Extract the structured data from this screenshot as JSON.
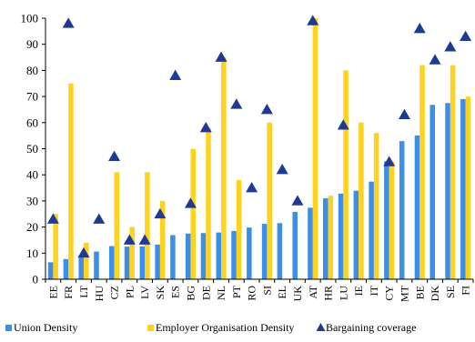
{
  "chart_data": {
    "type": "bar",
    "categories": [
      "EE",
      "FR",
      "LT",
      "HU",
      "CZ",
      "PL",
      "LV",
      "SK",
      "ES",
      "BG",
      "DE",
      "NL",
      "PT",
      "RO",
      "SI",
      "EL",
      "UK",
      "AT",
      "HR",
      "LU",
      "IE",
      "IT",
      "CY",
      "MT",
      "BE",
      "DK",
      "SE",
      "FI"
    ],
    "series": [
      {
        "name": "Union Density",
        "kind": "bar",
        "color": "#3b8fe6",
        "values": [
          6.5,
          7.7,
          8.5,
          10.6,
          12.7,
          12.5,
          12.6,
          13.3,
          16.9,
          17.5,
          17.7,
          17.9,
          18.5,
          19.8,
          21.2,
          21.5,
          25.8,
          27.4,
          31.0,
          32.8,
          33.9,
          37.4,
          45.2,
          52.9,
          55.1,
          66.8,
          67.5,
          69.0
        ]
      },
      {
        "name": "Employer Organisation Density",
        "kind": "bar",
        "color": "#ffd21f",
        "values": [
          25,
          75,
          14,
          null,
          41,
          20,
          41,
          30,
          null,
          50,
          58,
          85,
          38,
          null,
          60,
          null,
          null,
          100,
          32,
          80,
          60,
          56,
          45,
          null,
          82,
          null,
          82,
          70
        ]
      },
      {
        "name": "Bargaining  coverage",
        "kind": "marker",
        "color": "#1f3a93",
        "values": [
          23,
          98,
          10,
          23,
          47,
          15,
          15,
          25,
          78,
          29,
          58,
          85,
          67,
          35,
          65,
          42,
          30,
          99,
          null,
          59,
          null,
          null,
          45,
          63,
          96,
          84,
          89,
          93
        ]
      }
    ],
    "ylim": [
      0,
      100
    ],
    "yticks": [
      "0",
      "10",
      "20",
      "30",
      "40",
      "50",
      "60",
      "70",
      "80",
      "90",
      "100"
    ],
    "legend_position": "bottom",
    "grid": false
  }
}
